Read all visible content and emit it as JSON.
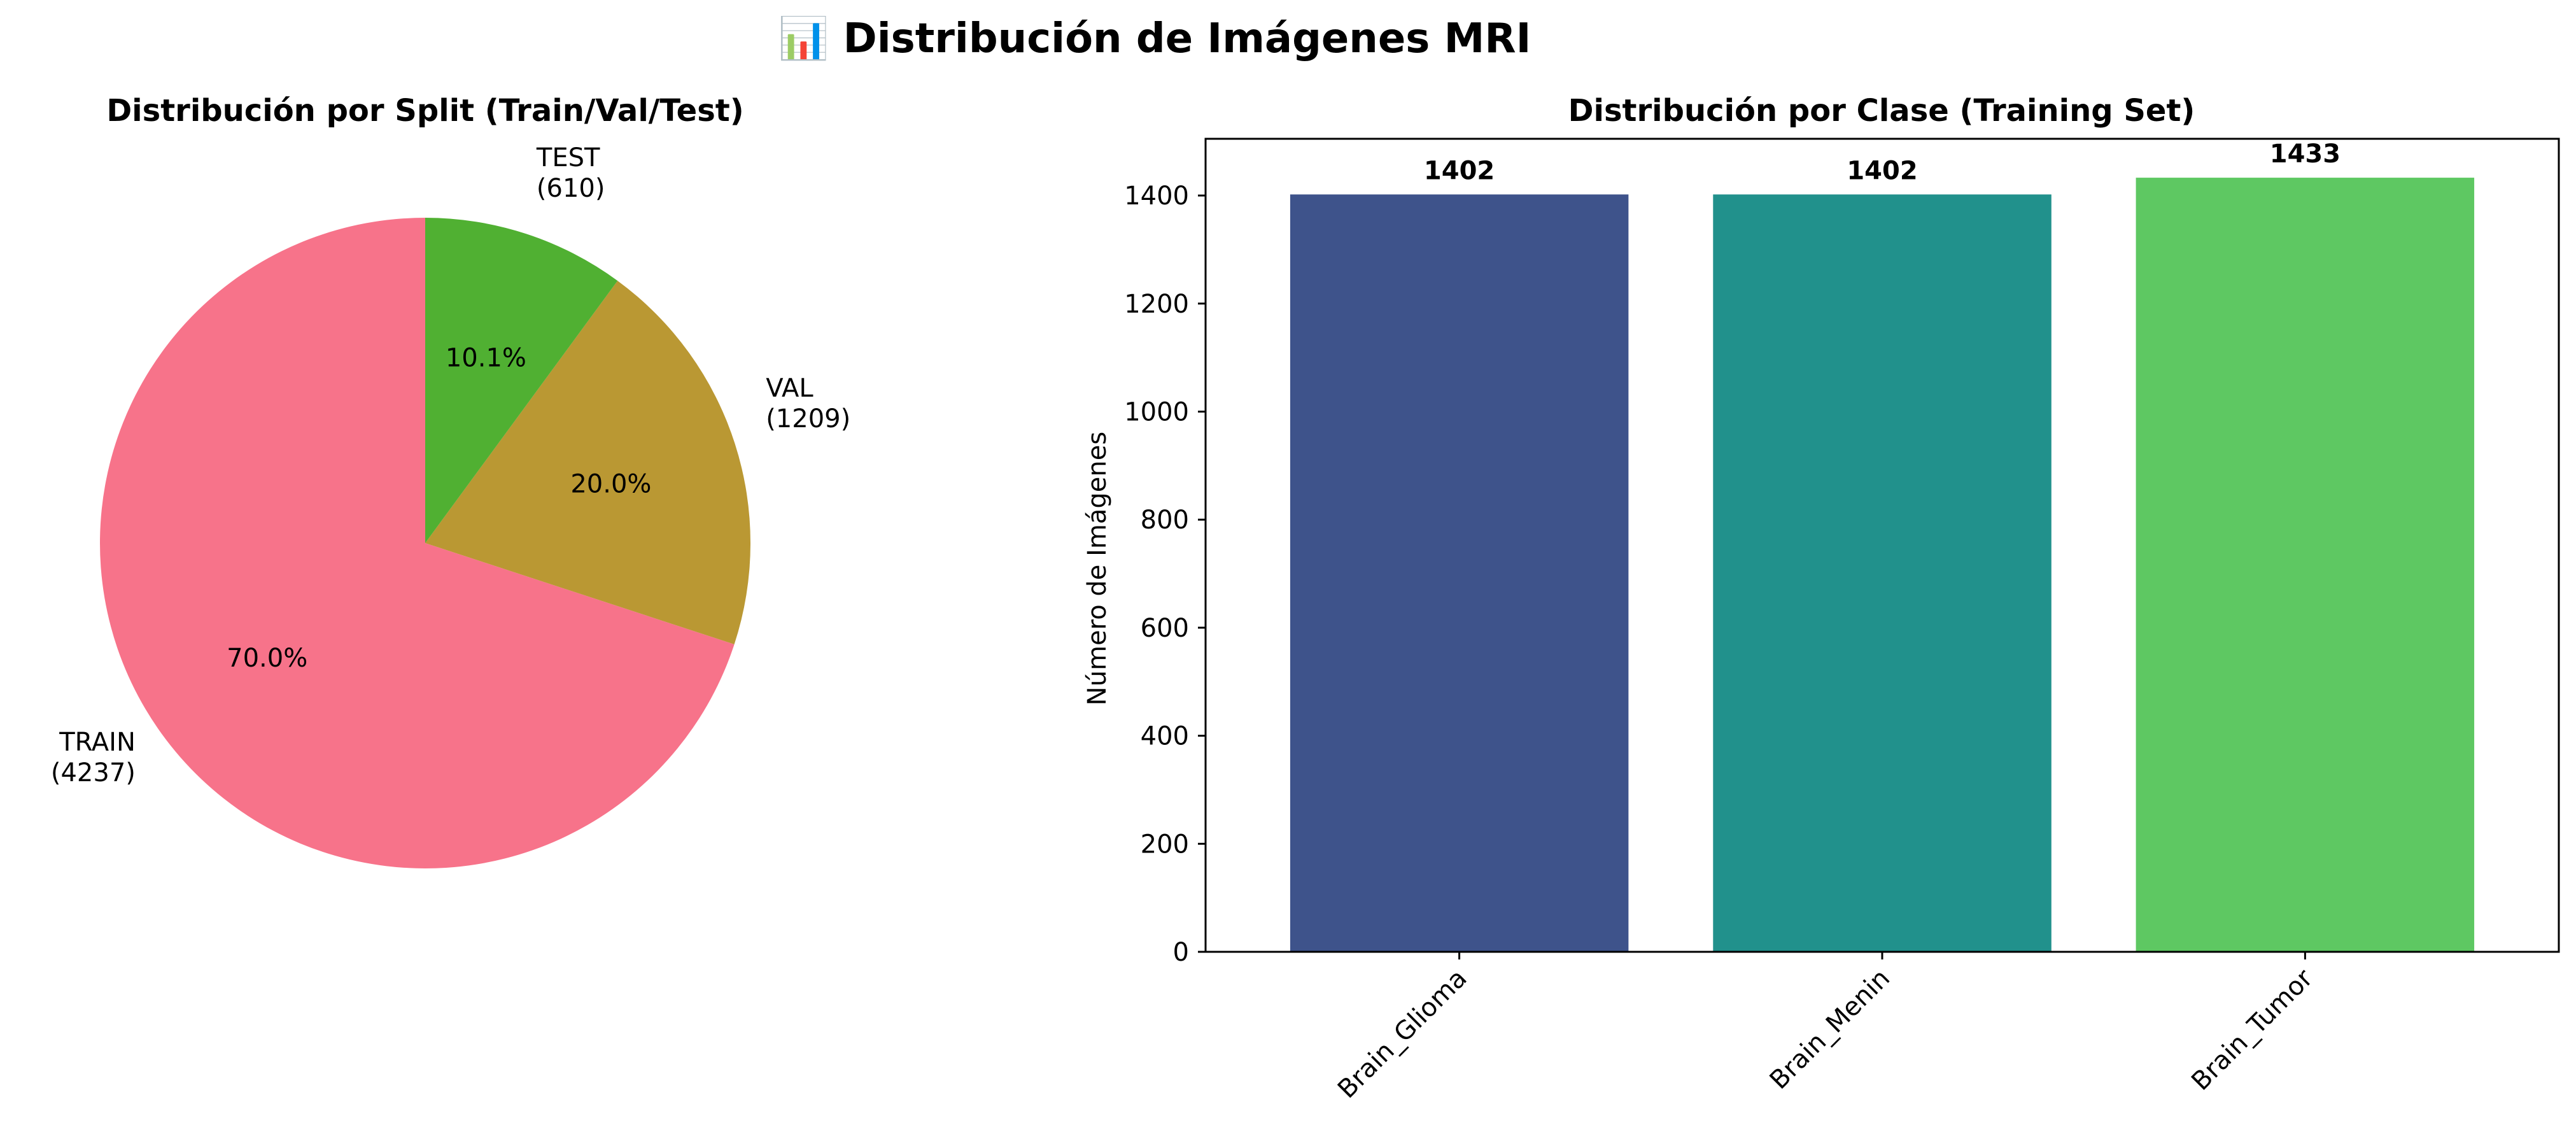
{
  "figure": {
    "title": "📊 Distribución de Imágenes MRI"
  },
  "chart_data": [
    {
      "type": "pie",
      "title": "Distribución por Split (Train/Val/Test)",
      "start_angle_deg": 90,
      "direction": "counterclockwise",
      "slices": [
        {
          "name": "TRAIN",
          "count": "(4237)",
          "value": 4237,
          "pct": "70.0%",
          "color": "#f7738a"
        },
        {
          "name": "VAL",
          "count": "(1209)",
          "value": 1209,
          "pct": "20.0%",
          "color": "#ba9833"
        },
        {
          "name": "TEST",
          "count": "(610)",
          "value": 610,
          "pct": "10.1%",
          "color": "#50b032"
        }
      ]
    },
    {
      "type": "bar",
      "title": "Distribución por Clase (Training Set)",
      "xlabel": "",
      "ylabel": "Número de Imágenes",
      "ylim": [
        0,
        1505
      ],
      "yticks": [
        0,
        200,
        400,
        600,
        800,
        1000,
        1200,
        1400
      ],
      "grid": false,
      "categories": [
        "Brain_Glioma",
        "Brain_Menin",
        "Brain_Tumor"
      ],
      "values": [
        1402,
        1402,
        1433
      ],
      "data_labels": [
        "1402",
        "1402",
        "1433"
      ],
      "colors": [
        "#3e538b",
        "#21918c",
        "#5ec862"
      ]
    }
  ]
}
